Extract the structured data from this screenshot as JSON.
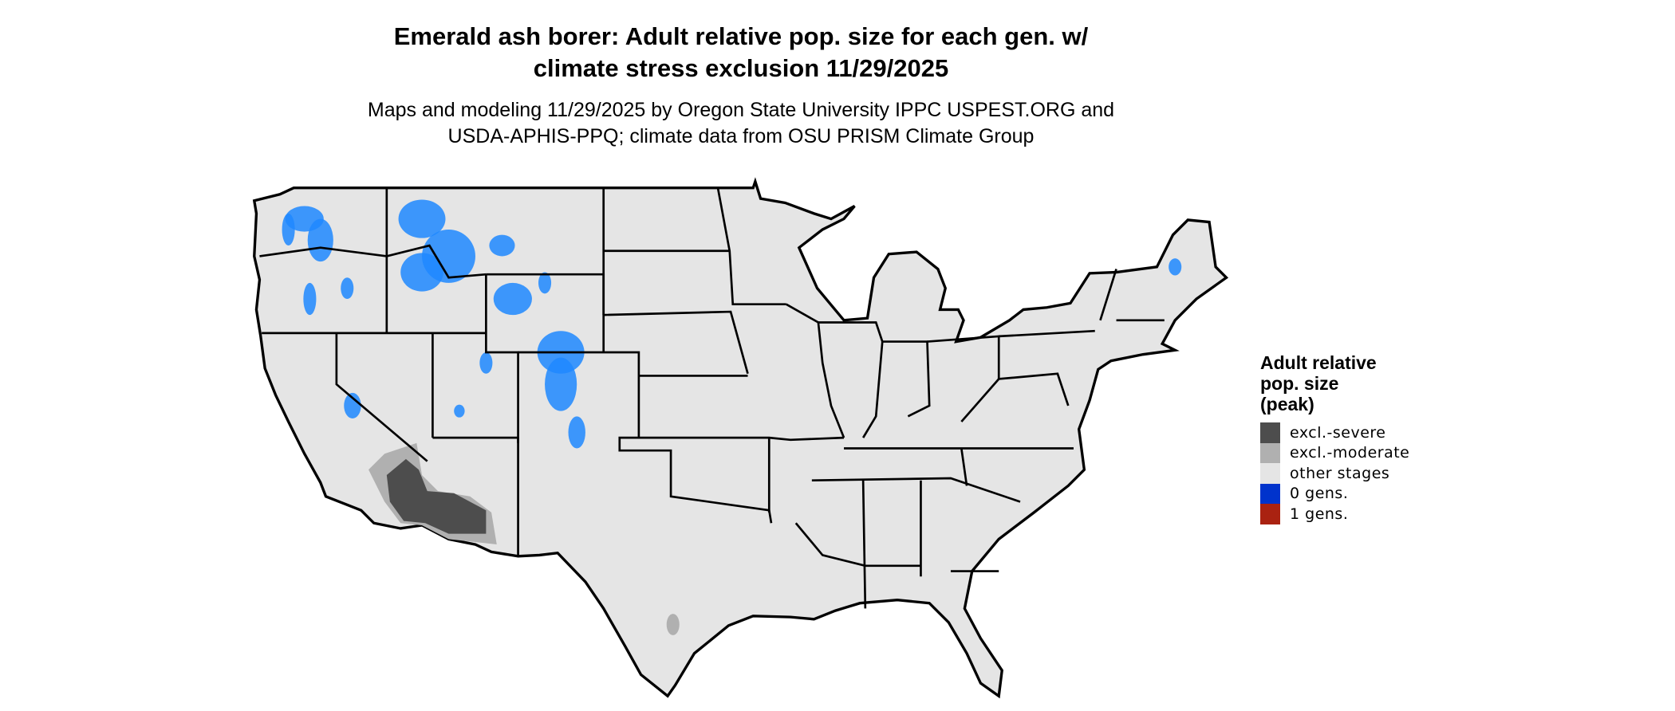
{
  "title": {
    "line1": "Emerald ash borer: Adult relative pop. size for each gen. w/",
    "line2": "climate stress exclusion 11/29/2025"
  },
  "subtitle": {
    "line1": "Maps and modeling 11/29/2025 by Oregon State University IPPC USPEST.ORG and",
    "line2": "USDA-APHIS-PPQ; climate data from OSU PRISM Climate Group"
  },
  "map": {
    "region": "Contiguous United States",
    "background_color": "#e5e5e5",
    "border_color": "#000000"
  },
  "legend": {
    "title_lines": [
      "Adult relative",
      "pop. size",
      "(peak)"
    ],
    "items": [
      {
        "label": "excl.-severe",
        "color": "#4d4d4d"
      },
      {
        "label": "excl.-moderate",
        "color": "#b0b0b0"
      },
      {
        "label": "other stages",
        "color": "#e5e5e5"
      },
      {
        "label": "0 gens.",
        "color": "#0033cc"
      },
      {
        "label": "1 gens.",
        "color": "#aa2211"
      }
    ]
  }
}
